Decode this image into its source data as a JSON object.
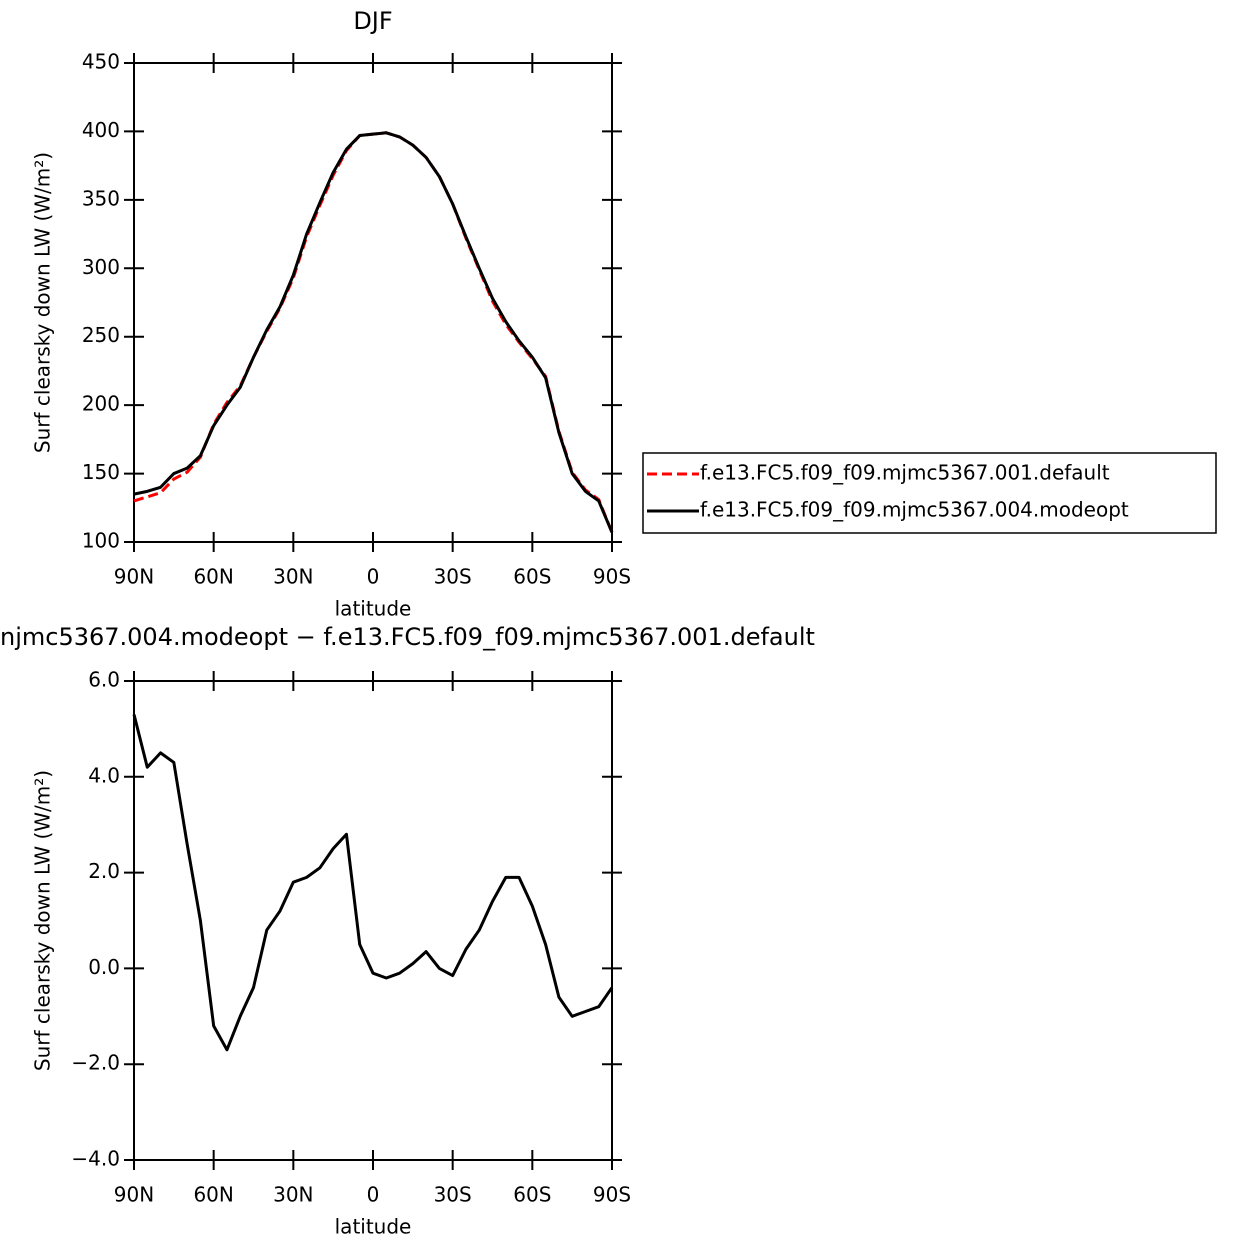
{
  "chart_data": [
    {
      "type": "line",
      "title": "DJF",
      "xlabel": "latitude",
      "ylabel": "Surf clearsky down LW (W/m²)",
      "x": [
        90,
        85,
        80,
        75,
        70,
        65,
        60,
        55,
        50,
        45,
        40,
        35,
        30,
        25,
        20,
        15,
        10,
        5,
        0,
        -5,
        -10,
        -15,
        -20,
        -25,
        -30,
        -35,
        -40,
        -45,
        -50,
        -55,
        -60,
        -65,
        -70,
        -75,
        -80,
        -85,
        -90
      ],
      "series": [
        {
          "name": "f.e13.FC5.f09_f09.mjmc5367.001.default",
          "color": "#ff0000",
          "dashed": true,
          "values": [
            130,
            133,
            136,
            146,
            151,
            162,
            186,
            202,
            214,
            235,
            254,
            271,
            293,
            323,
            346,
            368,
            386,
            397,
            398,
            399,
            396,
            390,
            381,
            367,
            347,
            322,
            299,
            276,
            259,
            246,
            234,
            221,
            181,
            151,
            138,
            131,
            107
          ]
        },
        {
          "name": "f.e13.FC5.f09_f09.mjmc5367.004.modeopt",
          "color": "#000000",
          "dashed": false,
          "values": [
            135,
            137,
            140,
            150,
            154,
            163,
            185,
            200,
            213,
            235,
            255,
            272,
            295,
            325,
            348,
            370,
            387,
            397,
            398,
            399,
            396,
            390,
            381,
            367,
            347,
            323,
            300,
            278,
            261,
            247,
            235,
            220,
            180,
            150,
            137,
            130,
            107
          ]
        }
      ],
      "xlim": [
        90,
        -90
      ],
      "xticks": [
        {
          "value": 90,
          "label": "90N"
        },
        {
          "value": 60,
          "label": "60N"
        },
        {
          "value": 30,
          "label": "30N"
        },
        0,
        {
          "value": -30,
          "label": "30S"
        },
        {
          "value": -60,
          "label": "60S"
        },
        {
          "value": -90,
          "label": "90S"
        }
      ],
      "ylim": [
        100,
        450
      ],
      "yticks": [
        100,
        150,
        200,
        250,
        300,
        350,
        400,
        450
      ],
      "legend": "right"
    },
    {
      "type": "line",
      "title": "njmc5367.004.modeopt − f.e13.FC5.f09_f09.mjmc5367.001.default",
      "xlabel": "latitude",
      "ylabel": "Surf clearsky down LW (W/m²)",
      "x": [
        90,
        85,
        80,
        75,
        70,
        65,
        60,
        55,
        50,
        45,
        40,
        35,
        30,
        25,
        20,
        15,
        10,
        5,
        0,
        -5,
        -10,
        -15,
        -20,
        -25,
        -30,
        -35,
        -40,
        -45,
        -50,
        -55,
        -60,
        -65,
        -70,
        -75,
        -80,
        -85,
        -90
      ],
      "values": [
        5.3,
        4.2,
        4.5,
        4.3,
        2.6,
        1.0,
        -1.2,
        -1.7,
        -1.0,
        -0.4,
        0.8,
        1.2,
        1.8,
        1.9,
        2.1,
        2.5,
        2.8,
        0.5,
        -0.1,
        -0.2,
        -0.1,
        0.1,
        0.35,
        0.0,
        -0.15,
        0.4,
        0.8,
        1.4,
        1.9,
        1.9,
        1.3,
        0.5,
        -0.6,
        -1.0,
        -0.9,
        -0.8,
        -0.4
      ],
      "color": "#000000",
      "xlim": [
        90,
        -90
      ],
      "xticks": [
        {
          "value": 90,
          "label": "90N"
        },
        {
          "value": 60,
          "label": "60N"
        },
        {
          "value": 30,
          "label": "30N"
        },
        0,
        {
          "value": -30,
          "label": "30S"
        },
        {
          "value": -60,
          "label": "60S"
        },
        {
          "value": -90,
          "label": "90S"
        }
      ],
      "ylim": [
        -4,
        6
      ],
      "yticks": [
        {
          "value": -4,
          "label": "−4.0"
        },
        {
          "value": -2,
          "label": "−2.0"
        },
        {
          "value": 0,
          "label": "0.0"
        },
        {
          "value": 2,
          "label": "2.0"
        },
        {
          "value": 4,
          "label": "4.0"
        },
        {
          "value": 6,
          "label": "6.0"
        }
      ]
    }
  ]
}
